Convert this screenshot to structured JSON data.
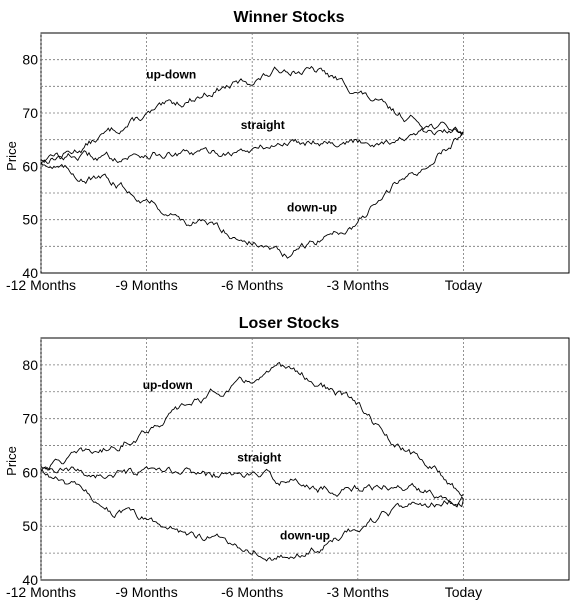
{
  "chart_data": [
    {
      "type": "line",
      "title": "Winner Stocks",
      "xlabel": "",
      "ylabel": "Price",
      "xlim": [
        -12,
        3
      ],
      "ylim": [
        40,
        85
      ],
      "grid": true,
      "x_ticks": [
        {
          "value": -12,
          "label": "-12 Months"
        },
        {
          "value": -9,
          "label": "-9 Months"
        },
        {
          "value": -6,
          "label": "-6 Months"
        },
        {
          "value": -3,
          "label": "-3 Months"
        },
        {
          "value": 0,
          "label": "Today"
        }
      ],
      "y_ticks": [
        40,
        50,
        60,
        70,
        80
      ],
      "x": [
        -12,
        -11,
        -10,
        -9,
        -8,
        -7,
        -6,
        -5,
        -4,
        -3,
        -2,
        -1,
        0
      ],
      "series": [
        {
          "annotation": "up-down",
          "label_at": [
            -8.3,
            76.5
          ],
          "values": [
            61,
            63,
            66.5,
            69.5,
            72,
            74.5,
            76,
            78.5,
            77.5,
            74,
            70,
            68,
            66.5
          ]
        },
        {
          "annotation": "straight",
          "label_at": [
            -5.7,
            67
          ],
          "values": [
            61.5,
            62,
            61.5,
            62.5,
            62,
            62.5,
            63,
            64.5,
            65,
            64.5,
            65,
            66,
            66.5
          ]
        },
        {
          "annotation": "down-up",
          "label_at": [
            -4.3,
            51.5
          ],
          "values": [
            61,
            58.5,
            57,
            54,
            50,
            48.5,
            46,
            43,
            46.5,
            49.5,
            56,
            60.5,
            66.5
          ]
        }
      ]
    },
    {
      "type": "line",
      "title": "Loser Stocks",
      "xlabel": "",
      "ylabel": "Price",
      "xlim": [
        -12,
        3
      ],
      "ylim": [
        40,
        85
      ],
      "grid": true,
      "x_ticks": [
        {
          "value": -12,
          "label": "-12 Months"
        },
        {
          "value": -9,
          "label": "-9 Months"
        },
        {
          "value": -6,
          "label": "-6 Months"
        },
        {
          "value": -3,
          "label": "-3 Months"
        },
        {
          "value": 0,
          "label": "Today"
        }
      ],
      "y_ticks": [
        40,
        50,
        60,
        70,
        80
      ],
      "x": [
        -12,
        -11,
        -10,
        -9,
        -8,
        -7,
        -6,
        -5,
        -4,
        -3,
        -2,
        -1,
        0
      ],
      "series": [
        {
          "annotation": "up-down",
          "label_at": [
            -8.4,
            75.5
          ],
          "values": [
            61,
            63,
            64.5,
            68,
            72,
            75,
            77,
            79.5,
            76,
            72.5,
            65,
            61.5,
            56
          ]
        },
        {
          "annotation": "straight",
          "label_at": [
            -5.8,
            62
          ],
          "values": [
            60,
            60,
            59.5,
            59.5,
            60,
            59.5,
            59.5,
            58.5,
            57,
            57,
            57.5,
            56.5,
            55
          ]
        },
        {
          "annotation": "down-up",
          "label_at": [
            -4.5,
            47.5
          ],
          "values": [
            60,
            57,
            53,
            51,
            49,
            47.5,
            46,
            44,
            46,
            50,
            52.5,
            54,
            55
          ]
        }
      ]
    }
  ]
}
